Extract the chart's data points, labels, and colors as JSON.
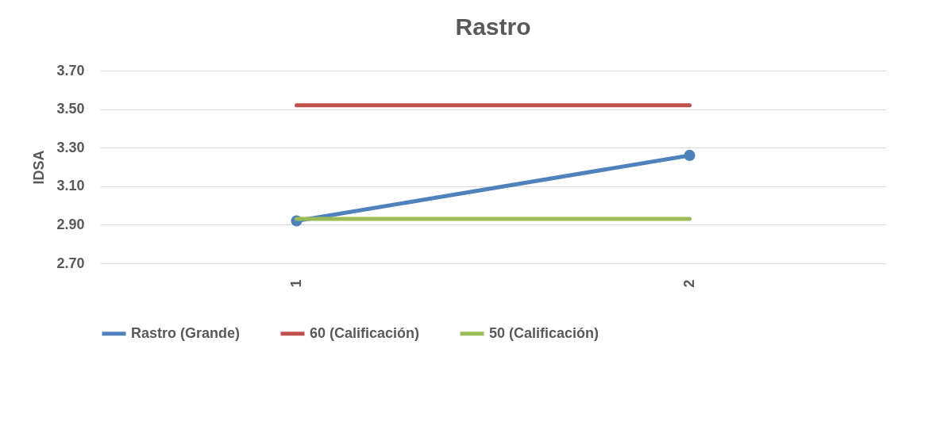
{
  "chart_data": {
    "type": "line",
    "title": "Rastro",
    "ylabel": "IDSA",
    "categories": [
      "1",
      "2"
    ],
    "series": [
      {
        "name": "Rastro (Grande)",
        "color": "#4f81bd",
        "values": [
          2.92,
          3.26
        ],
        "marker": "circle"
      },
      {
        "name": "60 (Calificación)",
        "color": "#c0504d",
        "values": [
          3.52,
          3.52
        ]
      },
      {
        "name": "50 (Calificación)",
        "color": "#9bbb59",
        "values": [
          2.93,
          2.93
        ]
      }
    ],
    "ylim": [
      2.7,
      3.7
    ],
    "yticks": [
      {
        "value": 2.7,
        "label": "2.70"
      },
      {
        "value": 2.9,
        "label": "2.90"
      },
      {
        "value": 3.1,
        "label": "3.10"
      },
      {
        "value": 3.3,
        "label": "3.30"
      },
      {
        "value": 3.5,
        "label": "3.50"
      },
      {
        "value": 3.7,
        "label": "3.70"
      }
    ],
    "grid": "y",
    "legend": "bottom"
  }
}
